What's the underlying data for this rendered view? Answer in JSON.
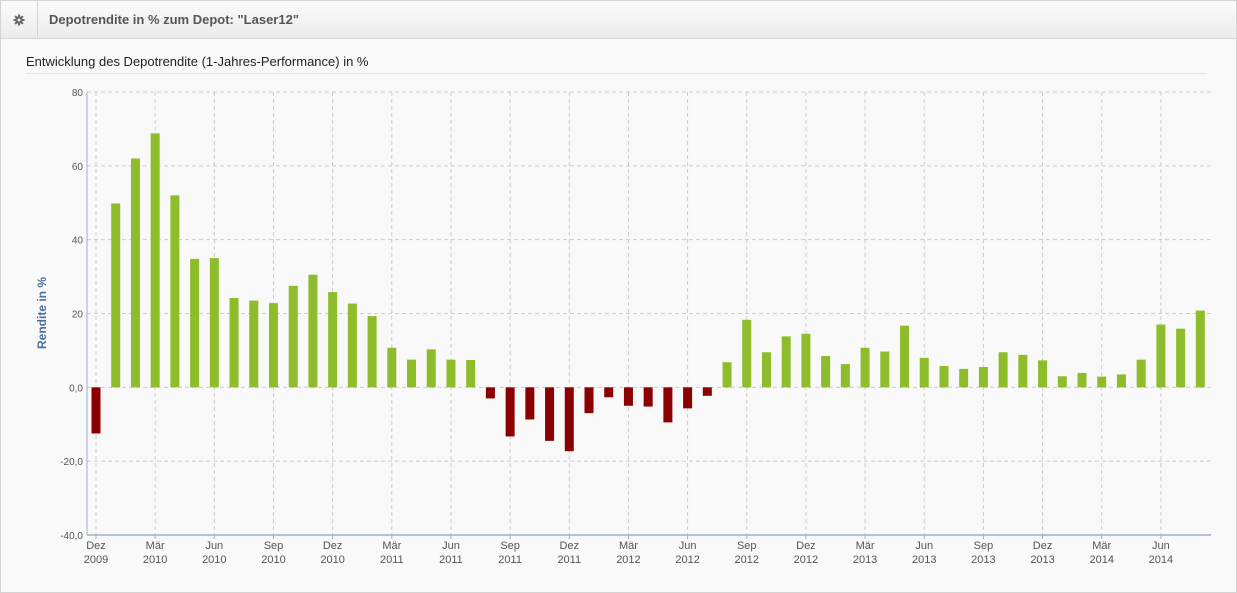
{
  "header": {
    "icon": "gear-icon",
    "title": "Depotrendite in % zum Depot: \"Laser12\""
  },
  "chart_data": {
    "type": "bar",
    "title": "Entwicklung des Depotrendite (1-Jahres-Performance) in %",
    "ylabel": "Rendite in %",
    "xlabel": "",
    "ylim": [
      -40,
      80
    ],
    "y_ticks": [
      "80",
      "60",
      "40",
      "20",
      "0,0",
      "-20,0",
      "-40,0"
    ],
    "y_tick_values": [
      80,
      60,
      40,
      20,
      0,
      -20,
      -40
    ],
    "x_tick_labels": [
      {
        "month": "Dez",
        "year": "2009",
        "index": 0
      },
      {
        "month": "Mär",
        "year": "2010",
        "index": 3
      },
      {
        "month": "Jun",
        "year": "2010",
        "index": 6
      },
      {
        "month": "Sep",
        "year": "2010",
        "index": 9
      },
      {
        "month": "Dez",
        "year": "2010",
        "index": 12
      },
      {
        "month": "Mär",
        "year": "2011",
        "index": 15
      },
      {
        "month": "Jun",
        "year": "2011",
        "index": 18
      },
      {
        "month": "Sep",
        "year": "2011",
        "index": 21
      },
      {
        "month": "Dez",
        "year": "2011",
        "index": 24
      },
      {
        "month": "Mär",
        "year": "2012",
        "index": 27
      },
      {
        "month": "Jun",
        "year": "2012",
        "index": 30
      },
      {
        "month": "Sep",
        "year": "2012",
        "index": 33
      },
      {
        "month": "Dez",
        "year": "2012",
        "index": 36
      },
      {
        "month": "Mär",
        "year": "2013",
        "index": 39
      },
      {
        "month": "Jun",
        "year": "2013",
        "index": 42
      },
      {
        "month": "Sep",
        "year": "2013",
        "index": 45
      },
      {
        "month": "Dez",
        "year": "2013",
        "index": 48
      },
      {
        "month": "Mär",
        "year": "2014",
        "index": 51
      },
      {
        "month": "Jun",
        "year": "2014",
        "index": 54
      }
    ],
    "categories": [
      "2009-12",
      "2010-01",
      "2010-02",
      "2010-03",
      "2010-04",
      "2010-05",
      "2010-06",
      "2010-07",
      "2010-08",
      "2010-09",
      "2010-10",
      "2010-11",
      "2010-12",
      "2011-01",
      "2011-02",
      "2011-03",
      "2011-04",
      "2011-05",
      "2011-06",
      "2011-07",
      "2011-08",
      "2011-09",
      "2011-10",
      "2011-11",
      "2011-12",
      "2012-01",
      "2012-02",
      "2012-03",
      "2012-04",
      "2012-05",
      "2012-06",
      "2012-07",
      "2012-08",
      "2012-09",
      "2012-10",
      "2012-11",
      "2012-12",
      "2013-01",
      "2013-02",
      "2013-03",
      "2013-04",
      "2013-05",
      "2013-06",
      "2013-07",
      "2013-08",
      "2013-09",
      "2013-10",
      "2013-11",
      "2013-12",
      "2014-01",
      "2014-02",
      "2014-03",
      "2014-04",
      "2014-05",
      "2014-06",
      "2014-07",
      "2014-08"
    ],
    "values": [
      -12.5,
      49.8,
      62.0,
      68.8,
      52.0,
      34.8,
      35.0,
      24.2,
      23.5,
      22.8,
      27.5,
      30.5,
      25.8,
      22.7,
      19.3,
      10.7,
      7.5,
      10.3,
      7.5,
      7.4,
      -3.0,
      -13.3,
      -8.7,
      -14.5,
      -17.3,
      -7.0,
      -2.7,
      -5.0,
      -5.2,
      -9.5,
      -5.7,
      -2.3,
      6.8,
      18.3,
      9.5,
      13.8,
      14.5,
      8.5,
      6.3,
      10.7,
      9.7,
      16.7,
      8.0,
      5.8,
      5.0,
      5.5,
      9.5,
      8.8,
      7.3,
      3.0,
      3.9,
      2.9,
      3.5,
      7.5,
      17.0,
      15.9,
      20.8
    ],
    "colors": {
      "positive": "#8dbd2a",
      "negative": "#8b0000",
      "axis": "#9fb0c8",
      "grid": "#cccccc",
      "label": "#555555",
      "ylabel": "#4a6f9a"
    },
    "grid": true,
    "legend": "none"
  }
}
